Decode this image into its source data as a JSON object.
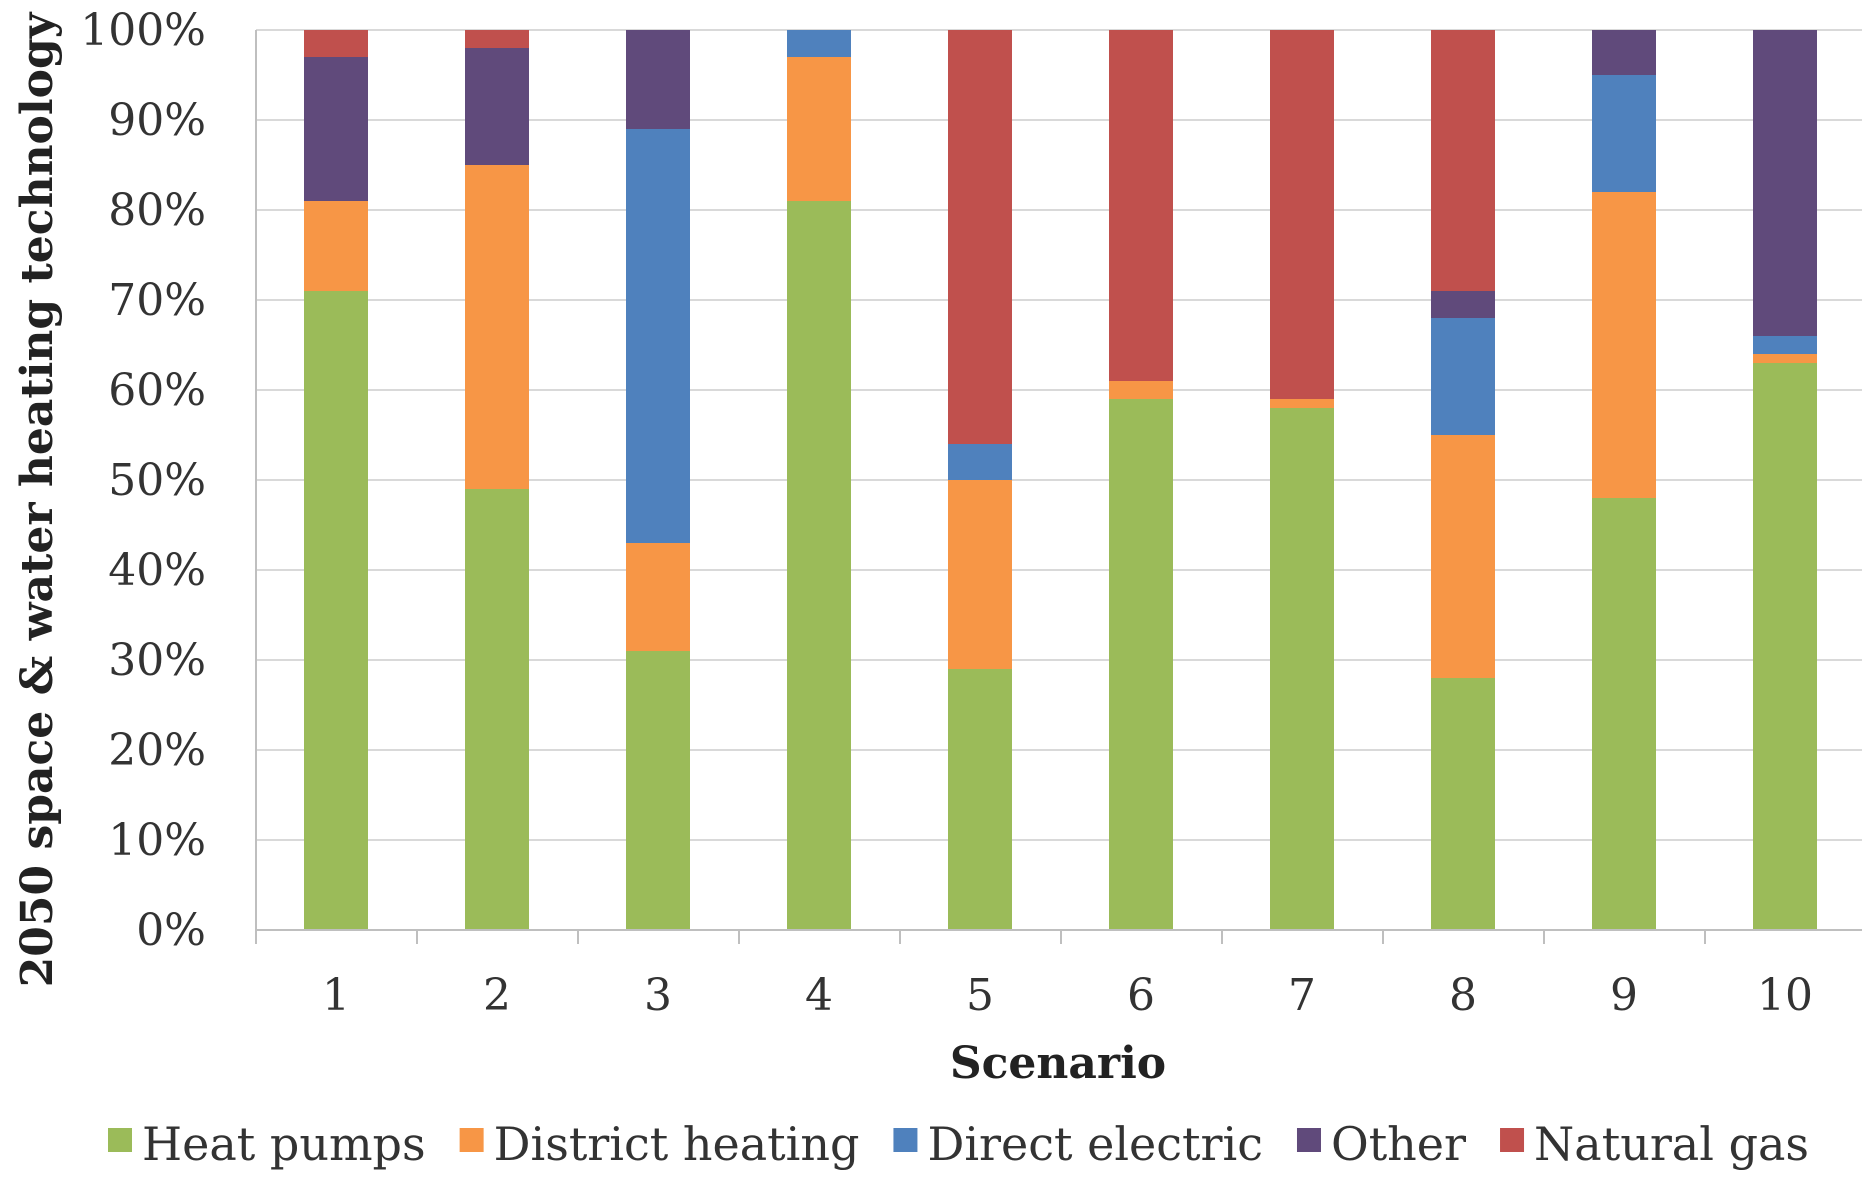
{
  "chart_data": {
    "type": "bar",
    "stacked": true,
    "title": "",
    "xlabel": "Scenario",
    "ylabel": "2050 space & water heating technology",
    "ylim": [
      0,
      100
    ],
    "yticks": [
      "0%",
      "10%",
      "20%",
      "30%",
      "40%",
      "50%",
      "60%",
      "70%",
      "80%",
      "90%",
      "100%"
    ],
    "categories": [
      "1",
      "2",
      "3",
      "4",
      "5",
      "6",
      "7",
      "8",
      "9",
      "10"
    ],
    "grid": true,
    "legend_position": "bottom",
    "series": [
      {
        "name": "Heat pumps",
        "color": "#9BBB59",
        "values": [
          71,
          49,
          31,
          81,
          29,
          59,
          58,
          28,
          48,
          63
        ]
      },
      {
        "name": "District heating",
        "color": "#F79646",
        "values": [
          10,
          36,
          12,
          16,
          21,
          2,
          1,
          27,
          34,
          1
        ]
      },
      {
        "name": "Direct electric",
        "color": "#4F81BD",
        "values": [
          0,
          0,
          46,
          3,
          4,
          0,
          0,
          13,
          13,
          2
        ]
      },
      {
        "name": "Other",
        "color": "#604A7B",
        "values": [
          16,
          13,
          11,
          0,
          0,
          0,
          0,
          3,
          5,
          34
        ]
      },
      {
        "name": "Natural gas",
        "color": "#C0504D",
        "values": [
          3,
          2,
          0,
          0,
          46,
          39,
          41,
          29,
          0,
          0
        ]
      }
    ]
  }
}
